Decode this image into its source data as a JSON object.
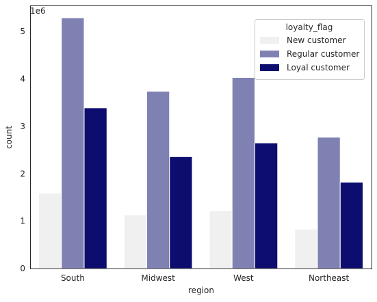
{
  "chart_data": {
    "type": "bar",
    "categories": [
      "South",
      "Midwest",
      "West",
      "Northeast"
    ],
    "series": [
      {
        "name": "New customer",
        "values": [
          1590000,
          1130000,
          1220000,
          830000
        ],
        "color": "#f0f0f0"
      },
      {
        "name": "Regular customer",
        "values": [
          5290000,
          3740000,
          4030000,
          2770000
        ],
        "color": "#8081b3"
      },
      {
        "name": "Loyal customer",
        "values": [
          3390000,
          2360000,
          2650000,
          1820000
        ],
        "color": "#0d0d70"
      }
    ],
    "xlabel": "region",
    "ylabel": "count",
    "scale_label": "1e6",
    "y_ticks": [
      0,
      1,
      2,
      3,
      4,
      5
    ],
    "y_tick_multiplier": 1000000,
    "ylim": [
      0,
      5550000
    ],
    "grid": false,
    "legend": {
      "title": "loyalty_flag",
      "placement": "top-right"
    }
  }
}
